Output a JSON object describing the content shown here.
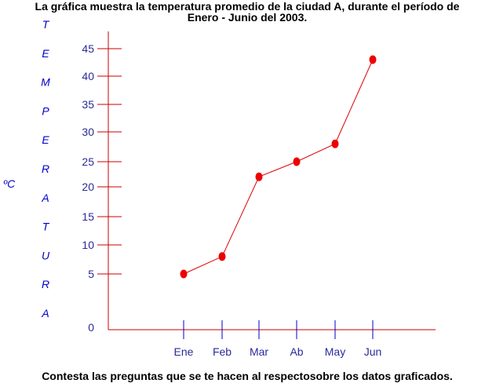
{
  "chart_data": {
    "type": "line",
    "title_lines": [
      "La gráfica muestra la temperatura promedio de la ciudad A, durante el período de",
      "Enero - Junio del 2003."
    ],
    "footer": "Contesta las preguntas que se te hacen al respectosobre los datos graficados.",
    "ylabel_letters": [
      "T",
      "E",
      "M",
      "P",
      "E",
      "R",
      "A",
      "T",
      "U",
      "R",
      "A"
    ],
    "yunit": "ºC",
    "categories": [
      "Ene",
      "Feb",
      "Mar",
      "Ab",
      "May",
      "Jun"
    ],
    "values": [
      5,
      8,
      22,
      25,
      28,
      43
    ],
    "yticks": [
      0,
      5,
      10,
      15,
      20,
      25,
      30,
      35,
      40,
      45
    ],
    "ylim": [
      0,
      45
    ],
    "grid": false,
    "colors": {
      "line": "#dd0000",
      "marker": "#ee0000",
      "axis": "#cc0000",
      "text": "#0000cc",
      "xtick": "#0000cc"
    }
  }
}
